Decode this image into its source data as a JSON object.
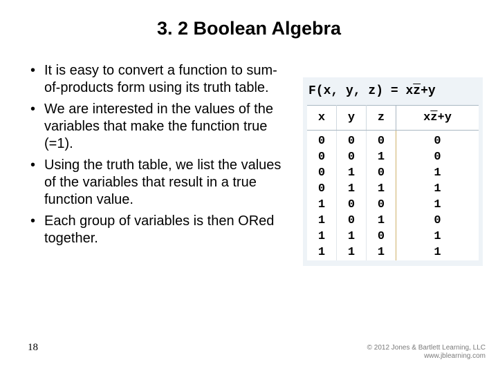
{
  "title": "3. 2 Boolean Algebra",
  "bullets": [
    "It is easy to convert a function to sum-of-products form using its truth table.",
    "We are interested in the values of the variables that make the function true (=1).",
    "Using the truth table, we list the values of the variables that result in a true function value.",
    "Each group of variables is then ORed together."
  ],
  "page_number": "18",
  "copyright_line1": "© 2012 Jones & Bartlett Learning, LLC",
  "copyright_line2": "www.jblearning.com",
  "figure": {
    "type": "table",
    "background_color": "#eef3f7",
    "cell_background": "#ffffff",
    "header_border_color": "#a9b7c2",
    "col_divider_color": "#cfd8df",
    "vars_output_divider_color": "#cfb06a",
    "font": "Courier New",
    "font_size_pt": 13,
    "function_prefix": "F(x, y, z) = ",
    "expr_parts": [
      "x",
      "z̄",
      "+y"
    ],
    "columns": [
      "x",
      "y",
      "z"
    ],
    "output_header_parts": [
      "x",
      "z̄",
      "+y"
    ],
    "rows": [
      [
        0,
        0,
        0,
        0
      ],
      [
        0,
        0,
        1,
        0
      ],
      [
        0,
        1,
        0,
        1
      ],
      [
        0,
        1,
        1,
        1
      ],
      [
        1,
        0,
        0,
        1
      ],
      [
        1,
        0,
        1,
        0
      ],
      [
        1,
        1,
        0,
        1
      ],
      [
        1,
        1,
        1,
        1
      ]
    ]
  }
}
